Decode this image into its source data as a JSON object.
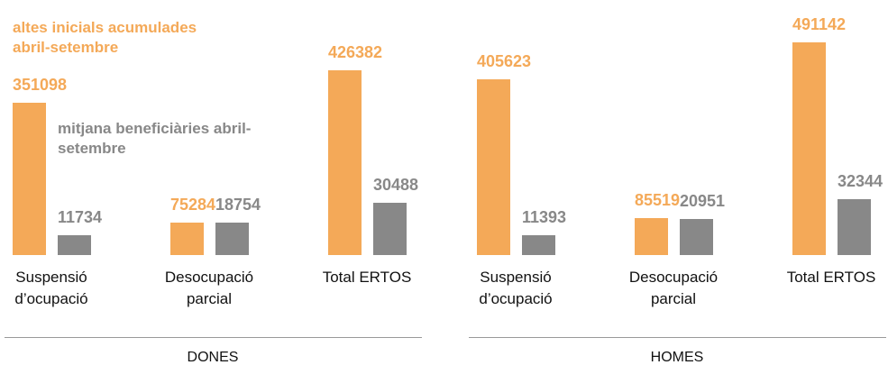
{
  "chart_data": [
    {
      "type": "bar",
      "title": "DONES",
      "categories": [
        "Suspensió d’ocupació",
        "Desocupació parcial",
        "Total ERTOS"
      ],
      "series": [
        {
          "name": "altes inicials acumulades abril-setembre",
          "color": "#f4a958",
          "values": [
            351098,
            75284,
            426382
          ]
        },
        {
          "name": "mitjana beneficiàries abril-setembre",
          "color": "#888888",
          "values": [
            11734,
            18754,
            30488
          ]
        }
      ]
    },
    {
      "type": "bar",
      "title": "HOMES",
      "categories": [
        "Suspensió d’ocupació",
        "Desocupació parcial",
        "Total ERTOS"
      ],
      "series": [
        {
          "color": "#f4a958",
          "values": [
            405623,
            85519,
            491142
          ]
        },
        {
          "color": "#888888",
          "values": [
            11393,
            20951,
            32344
          ]
        }
      ]
    }
  ]
}
